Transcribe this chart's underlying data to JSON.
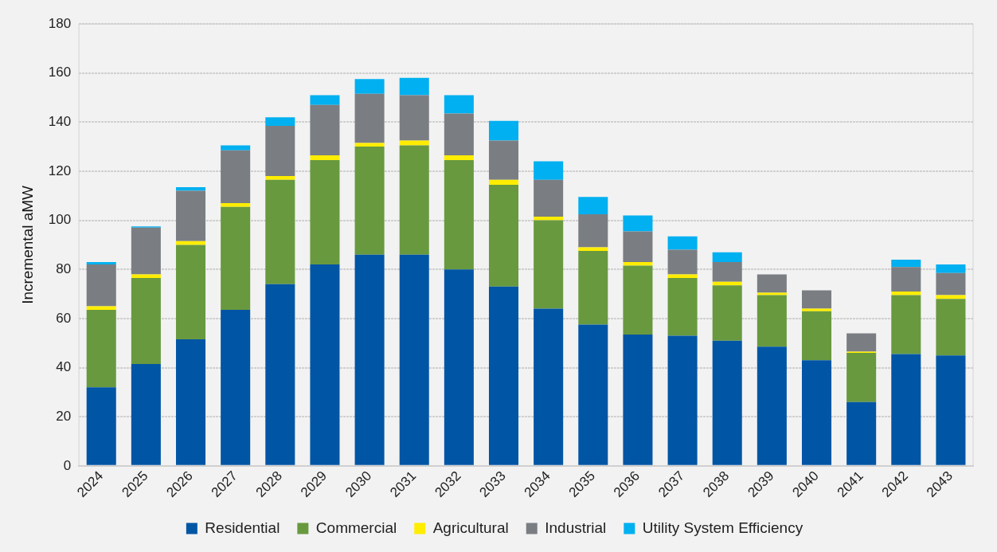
{
  "chart_data": {
    "type": "bar",
    "stacked": true,
    "ylabel": "Incremental aMW",
    "categories": [
      "2024",
      "2025",
      "2026",
      "2027",
      "2028",
      "2029",
      "2030",
      "2031",
      "2032",
      "2033",
      "2034",
      "2035",
      "2036",
      "2037",
      "2038",
      "2039",
      "2040",
      "2041",
      "2042",
      "2043"
    ],
    "series": [
      {
        "name": "Residential",
        "color": "#0055a5",
        "values": [
          32,
          41.5,
          51.5,
          63.5,
          74,
          82,
          86,
          86,
          80,
          73,
          64,
          57.5,
          53.5,
          53,
          51,
          48.5,
          43,
          26,
          45.5,
          45
        ]
      },
      {
        "name": "Commercial",
        "color": "#68993f",
        "values": [
          31.5,
          35,
          38.5,
          42,
          42.5,
          42.5,
          44,
          44.5,
          44.5,
          41.5,
          36,
          30,
          28,
          23.5,
          22.5,
          21,
          20,
          20,
          24,
          23
        ]
      },
      {
        "name": "Agricultural",
        "color": "#ffed00",
        "values": [
          1.5,
          1.5,
          1.5,
          1.5,
          1.5,
          2,
          1.5,
          2,
          2,
          2,
          1.5,
          1.5,
          1.5,
          1.5,
          1.5,
          1,
          1,
          0.5,
          1.5,
          1.5
        ]
      },
      {
        "name": "Industrial",
        "color": "#7a7e82",
        "values": [
          17,
          19,
          20.5,
          21.5,
          20.5,
          20.5,
          20,
          18.5,
          17,
          16,
          15,
          13.5,
          12.5,
          10,
          8,
          7.5,
          7.5,
          7.5,
          10,
          9
        ]
      },
      {
        "name": "Utility System Efficiency",
        "color": "#00b0f0",
        "values": [
          1,
          0.5,
          1.5,
          2,
          3.5,
          4,
          6,
          7,
          7.5,
          8,
          7.5,
          7,
          6.5,
          5.5,
          4,
          0,
          0,
          0,
          3,
          3.5
        ]
      }
    ],
    "ylim": [
      0,
      180
    ],
    "yticks": [
      0,
      20,
      40,
      60,
      80,
      100,
      120,
      140,
      160,
      180
    ],
    "grid": "y",
    "legend": "bottom"
  }
}
